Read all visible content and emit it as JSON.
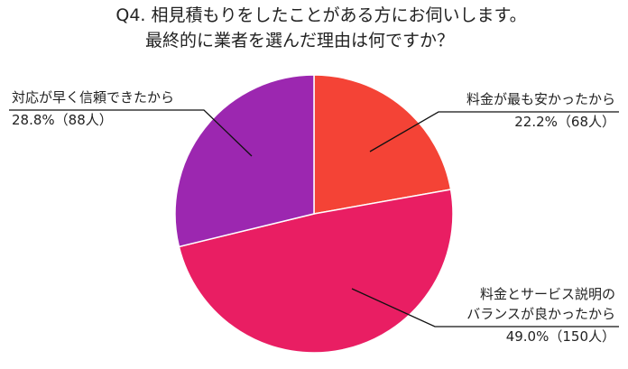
{
  "title": {
    "line1": "Q4. 相見積もりをしたことがある方にお伺いします。",
    "line2": "最終的に業者を選んだ理由は何ですか？"
  },
  "chart_data": {
    "type": "pie",
    "title": "Q4. 相見積もりをしたことがある方にお伺いします。最終的に業者を選んだ理由は何ですか？",
    "start_angle": "12 o'clock, clockwise",
    "slices": [
      {
        "label": "料金が最も安かったから",
        "percent": 22.2,
        "count": 68,
        "color": "#F44336",
        "value_text": "22.2%（68人）"
      },
      {
        "label": "料金とサービス説明のバランスが良かったから",
        "percent": 49.0,
        "count": 150,
        "color": "#E91E63",
        "value_text": "49.0%（150人）"
      },
      {
        "label": "対応が早く信頼できたから",
        "percent": 28.8,
        "count": 88,
        "color": "#9C27B0",
        "value_text": "28.8%（88人）"
      }
    ],
    "legend": "callout labels with leader lines"
  },
  "labels": {
    "cheapest_line1": "料金が最も安かったから",
    "cheapest_value": "22.2%（68人）",
    "balance_line1": "料金とサービス説明の",
    "balance_line2": "バランスが良かったから",
    "balance_value": "49.0%（150人）",
    "fast_line1": "対応が早く信頼できたから",
    "fast_value": "28.8%（88人）"
  }
}
